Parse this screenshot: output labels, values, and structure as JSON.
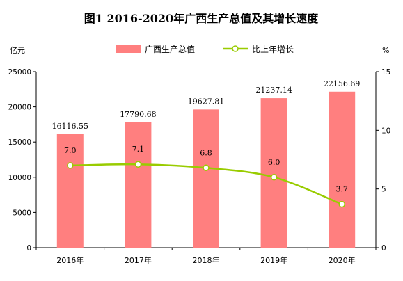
{
  "chart_data": {
    "type": "bar",
    "title": "图1   2016-2020年广西生产总值及其增长速度",
    "left_unit": "亿元",
    "right_unit": "%",
    "categories": [
      "2016年",
      "2017年",
      "2018年",
      "2019年",
      "2020年"
    ],
    "series": [
      {
        "name": "广西生产总值",
        "type": "bar",
        "axis": "left",
        "values": [
          16116.55,
          17790.68,
          19627.81,
          21237.14,
          22156.69
        ],
        "labels": [
          "16116.55",
          "17790.68",
          "19627.81",
          "21237.14",
          "22156.69"
        ]
      },
      {
        "name": "比上年增长",
        "type": "line",
        "axis": "right",
        "values": [
          7.0,
          7.1,
          6.8,
          6.0,
          3.7
        ],
        "labels": [
          "7.0",
          "7.1",
          "6.8",
          "6.0",
          "3.7"
        ]
      }
    ],
    "y_left": {
      "min": 0,
      "max": 25000,
      "ticks": [
        0,
        5000,
        10000,
        15000,
        20000,
        25000
      ]
    },
    "y_right": {
      "min": 0,
      "max": 15,
      "ticks": [
        0,
        5,
        10,
        15
      ]
    },
    "grid": false,
    "legend_position": "top",
    "colors": {
      "bar": "#ff7f7f",
      "line": "#99cc00",
      "marker_fill": "#ffffff"
    }
  }
}
